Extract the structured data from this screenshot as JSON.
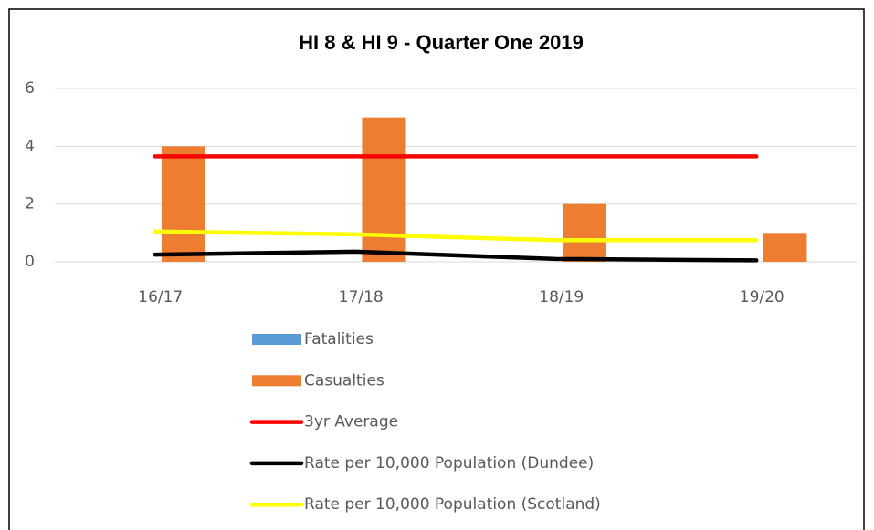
{
  "chart_data": {
    "type": "bar",
    "title": "HI 8 & HI 9 - Quarter One 2019",
    "categories": [
      "16/17",
      "17/18",
      "18/19",
      "19/20"
    ],
    "series": [
      {
        "name": "Fatalities",
        "type": "bar",
        "color": "#5b9bd5",
        "values": [
          0,
          0,
          0,
          0
        ]
      },
      {
        "name": "Casualties",
        "type": "bar",
        "color": "#ed7d31",
        "values": [
          4,
          5,
          2,
          1
        ]
      },
      {
        "name": "3yr Average",
        "type": "line",
        "color": "#ff0000",
        "values": [
          3.65,
          3.65,
          3.65,
          3.65
        ]
      },
      {
        "name": "Rate per 10,000 Population (Dundee)",
        "type": "line",
        "color": "#000000",
        "values": [
          0.25,
          0.35,
          0.1,
          0.05
        ]
      },
      {
        "name": "Rate per 10,000 Population (Scotland)",
        "type": "line",
        "color": "#ffff00",
        "values": [
          1.05,
          0.95,
          0.75,
          0.75
        ]
      }
    ],
    "ylim": [
      0,
      6
    ],
    "yticks": [
      0,
      2,
      4,
      6
    ],
    "grid": true,
    "legend": "bottom"
  }
}
